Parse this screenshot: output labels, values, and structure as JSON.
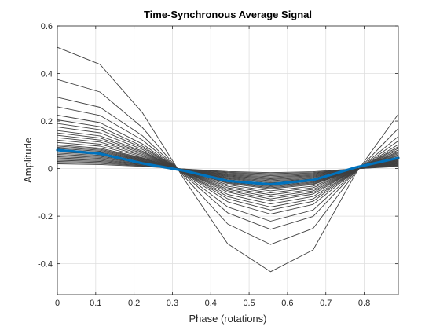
{
  "chart_data": {
    "type": "line",
    "title": "Time-Synchronous Average Signal",
    "xlabel": "Phase (rotations)",
    "ylabel": "Amplitude",
    "xlim": [
      0,
      0.889
    ],
    "ylim": [
      -0.53,
      0.6
    ],
    "xticks": [
      0,
      0.1,
      0.2,
      0.3,
      0.4,
      0.5,
      0.6,
      0.7,
      0.8
    ],
    "xtick_labels": [
      "0",
      "0.1",
      "0.2",
      "0.3",
      "0.4",
      "0.5",
      "0.6",
      "0.7",
      "0.8"
    ],
    "yticks": [
      -0.4,
      -0.2,
      0,
      0.2,
      0.4,
      0.6
    ],
    "ytick_labels": [
      "-0.4",
      "-0.2",
      "0",
      "0.2",
      "0.4",
      "0.6"
    ],
    "grid": true,
    "box": true,
    "x": [
      0,
      0.111,
      0.222,
      0.333,
      0.444,
      0.556,
      0.667,
      0.778,
      0.889
    ],
    "gray_color": "#404040",
    "average_color": "#0072BD",
    "gray_amplitudes": [
      0.51,
      0.375,
      0.3,
      0.26,
      0.225,
      0.205,
      0.19,
      0.175,
      0.16,
      0.15,
      0.14,
      0.13,
      0.12,
      0.11,
      0.1,
      0.095,
      0.09,
      0.085,
      0.08,
      0.075,
      0.07,
      0.065,
      0.06,
      0.055,
      0.05,
      0.045,
      0.04,
      0.035,
      0.03,
      0.025,
      0.02
    ],
    "gray_shape": [
      1.0,
      0.86,
      0.46,
      -0.1,
      -0.62,
      -0.85,
      -0.67,
      -0.04,
      0.45
    ],
    "average_series": {
      "values": [
        0.078,
        0.063,
        0.022,
        -0.01,
        -0.052,
        -0.066,
        -0.048,
        0.005,
        0.045
      ]
    }
  }
}
